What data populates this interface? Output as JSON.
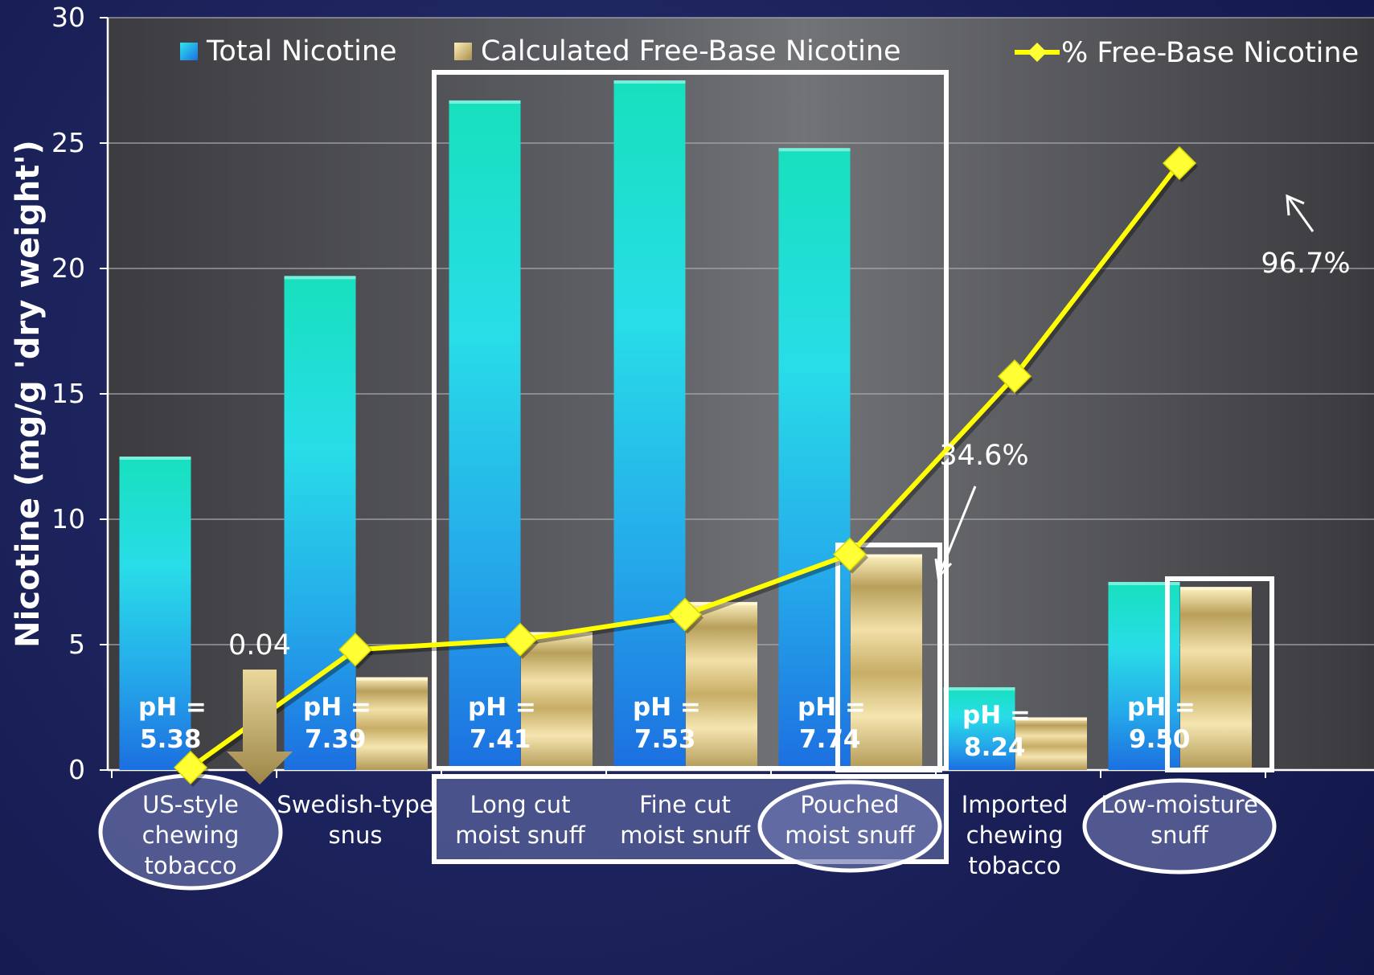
{
  "chart_data": {
    "type": "bar",
    "ylabel": "Nicotine (mg/g 'dry weight')",
    "ylim": [
      0,
      30
    ],
    "yticks": [
      0,
      5,
      10,
      15,
      20,
      25,
      30
    ],
    "grid": true,
    "legend_position": "top",
    "categories": [
      [
        "US-style",
        "chewing",
        "tobacco"
      ],
      [
        "Swedish-type",
        "snus"
      ],
      [
        "Long cut",
        "moist snuff"
      ],
      [
        "Fine cut",
        "moist snuff"
      ],
      [
        "Pouched",
        "moist snuff"
      ],
      [
        "Imported",
        "chewing",
        "tobacco"
      ],
      [
        "Low-moisture",
        "snuff"
      ]
    ],
    "series": [
      {
        "name": "Total Nicotine",
        "type": "bar",
        "color": "#1fb8e0",
        "values": [
          12.5,
          19.7,
          26.7,
          27.5,
          24.8,
          3.3,
          7.5
        ]
      },
      {
        "name": "Calculated Free-Base Nicotine",
        "type": "bar",
        "color": "#d9c58a",
        "values": [
          0.04,
          3.7,
          5.5,
          6.7,
          8.6,
          2.1,
          7.3
        ]
      },
      {
        "name": "% Free-Base Nicotine",
        "type": "line",
        "color": "#ffff00",
        "values": [
          0.1,
          4.8,
          5.2,
          6.2,
          8.6,
          15.7,
          24.2
        ]
      }
    ],
    "ph_values": [
      "5.38",
      "7.39",
      "7.41",
      "7.53",
      "7.74",
      "8.24",
      "9.50"
    ],
    "ph_prefix": "pH =",
    "annotations": [
      {
        "text": "0.04",
        "category_index": 0
      },
      {
        "text": "34.6%",
        "category_index": 4
      },
      {
        "text": "96.7%",
        "category_index": 6
      }
    ]
  }
}
